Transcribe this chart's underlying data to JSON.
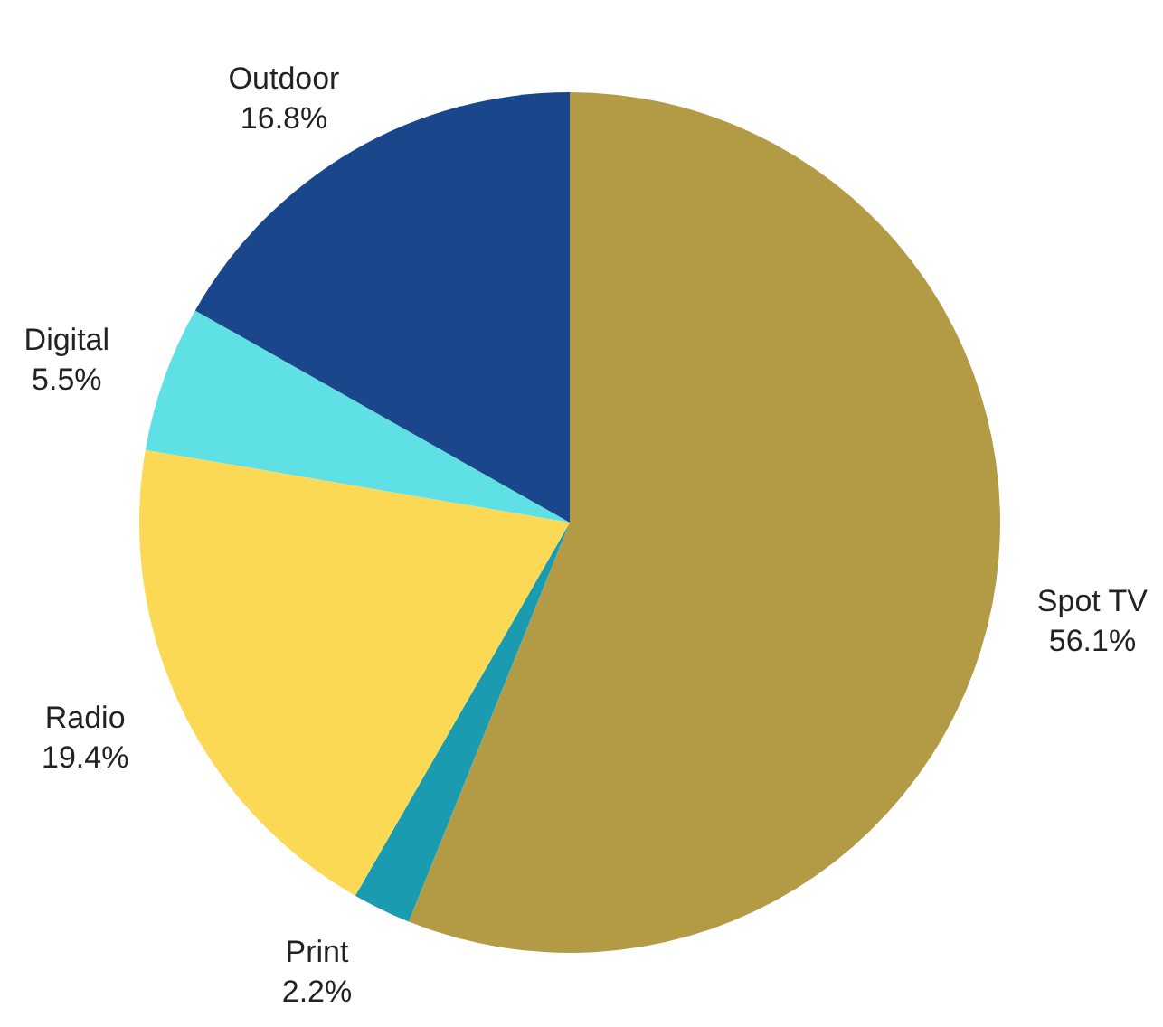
{
  "chart_data": {
    "type": "pie",
    "categories": [
      "Spot TV",
      "Print",
      "Radio",
      "Digital",
      "Outdoor"
    ],
    "values": [
      56.1,
      2.2,
      19.4,
      5.5,
      16.8
    ],
    "colors": [
      "#b39b45",
      "#1a9bb0",
      "#fbd955",
      "#5ee0e4",
      "#1a468b"
    ],
    "value_labels": [
      "56.1%",
      "2.2%",
      "19.4%",
      "5.5%",
      "16.8%"
    ]
  }
}
